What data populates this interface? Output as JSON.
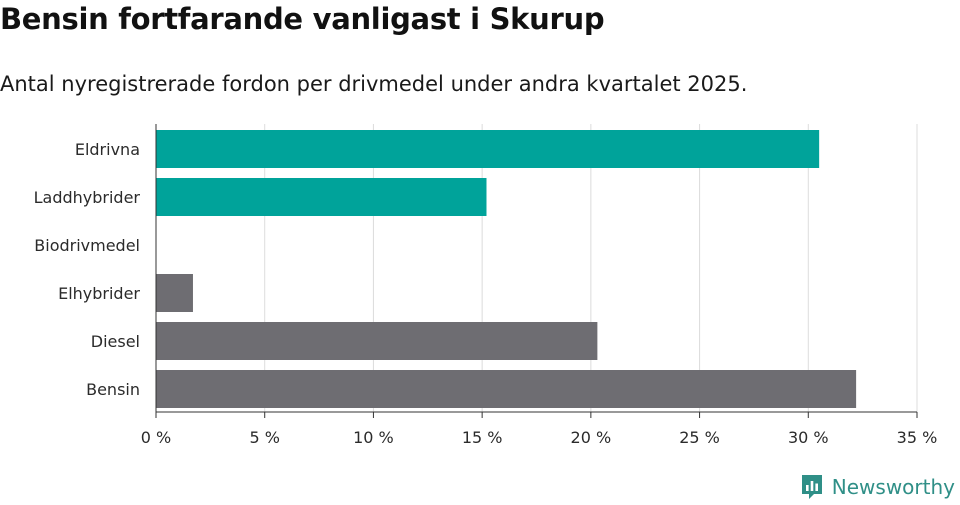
{
  "header": {
    "title": "Bensin fortfarande vanligast i Skurup",
    "subtitle": "Antal nyregistrerade fordon per drivmedel under andra kvartalet 2025."
  },
  "brand": {
    "name": "Newsworthy",
    "icon": "newsworthy-logo-icon",
    "color": "#2f8f87"
  },
  "chart_data": {
    "type": "bar",
    "orientation": "horizontal",
    "title": "Bensin fortfarande vanligast i Skurup",
    "subtitle": "Antal nyregistrerade fordon per drivmedel under andra kvartalet 2025.",
    "categories": [
      "Eldrivna",
      "Laddhybrider",
      "Biodrivmedel",
      "Elhybrider",
      "Diesel",
      "Bensin"
    ],
    "values": [
      30.5,
      15.2,
      0,
      1.7,
      20.3,
      32.2
    ],
    "colors": [
      "#00a39a",
      "#00a39a",
      "#00a39a",
      "#6e6d72",
      "#6e6d72",
      "#6e6d72"
    ],
    "xlabel": "",
    "ylabel": "",
    "xlim": [
      0,
      35
    ],
    "xticks": [
      0,
      5,
      10,
      15,
      20,
      25,
      30,
      35
    ],
    "tick_labels": [
      "0 %",
      "5 %",
      "10 %",
      "15 %",
      "20 %",
      "25 %",
      "30 %",
      "35 %"
    ],
    "grid": true
  }
}
